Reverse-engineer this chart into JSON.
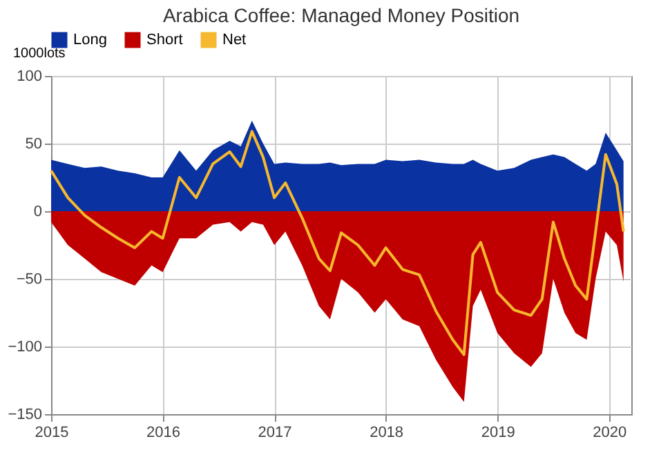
{
  "chart_data": {
    "type": "area",
    "title": "Arabica Coffee: Managed Money Position",
    "ylabel": "1000lots",
    "x": [
      2015.0,
      2015.15,
      2015.3,
      2015.45,
      2015.6,
      2015.75,
      2015.9,
      2016.0,
      2016.15,
      2016.3,
      2016.45,
      2016.6,
      2016.7,
      2016.8,
      2016.9,
      2017.0,
      2017.1,
      2017.25,
      2017.4,
      2017.5,
      2017.6,
      2017.75,
      2017.9,
      2018.0,
      2018.15,
      2018.3,
      2018.45,
      2018.6,
      2018.7,
      2018.78,
      2018.85,
      2019.0,
      2019.15,
      2019.3,
      2019.4,
      2019.5,
      2019.6,
      2019.7,
      2019.8,
      2019.88,
      2019.97,
      2020.07,
      2020.13
    ],
    "series": [
      {
        "name": "Long",
        "color": "#0a32a0",
        "values": [
          38,
          35,
          32,
          33,
          30,
          28,
          25,
          25,
          45,
          30,
          45,
          52,
          48,
          67,
          50,
          35,
          36,
          35,
          35,
          36,
          34,
          35,
          35,
          38,
          37,
          38,
          36,
          35,
          35,
          38,
          35,
          30,
          32,
          38,
          40,
          42,
          40,
          35,
          30,
          35,
          58,
          45,
          37
        ]
      },
      {
        "name": "Short",
        "color": "#c00000",
        "values": [
          -8,
          -25,
          -35,
          -45,
          -50,
          -55,
          -40,
          -45,
          -20,
          -20,
          -10,
          -8,
          -15,
          -8,
          -10,
          -25,
          -15,
          -40,
          -70,
          -80,
          -50,
          -60,
          -75,
          -65,
          -80,
          -85,
          -110,
          -130,
          -141,
          -70,
          -58,
          -90,
          -105,
          -115,
          -105,
          -50,
          -75,
          -90,
          -95,
          -50,
          -15,
          -25,
          -52
        ]
      },
      {
        "name": "Net",
        "type": "line",
        "color": "#f5b82e",
        "values": [
          30,
          10,
          -3,
          -12,
          -20,
          -27,
          -15,
          -20,
          25,
          10,
          35,
          44,
          33,
          59,
          40,
          10,
          21,
          -5,
          -35,
          -44,
          -16,
          -25,
          -40,
          -27,
          -43,
          -47,
          -74,
          -95,
          -106,
          -32,
          -23,
          -60,
          -73,
          -77,
          -65,
          -8,
          -35,
          -55,
          -65,
          -15,
          42,
          20,
          -15
        ]
      }
    ],
    "xlim": [
      2015,
      2020.2
    ],
    "xticks": [
      2015,
      2016,
      2017,
      2018,
      2019,
      2020
    ],
    "ylim": [
      -150,
      100
    ],
    "yticks": [
      -150,
      -100,
      -50,
      0,
      50,
      100
    ],
    "grid": true,
    "legend": "top"
  }
}
